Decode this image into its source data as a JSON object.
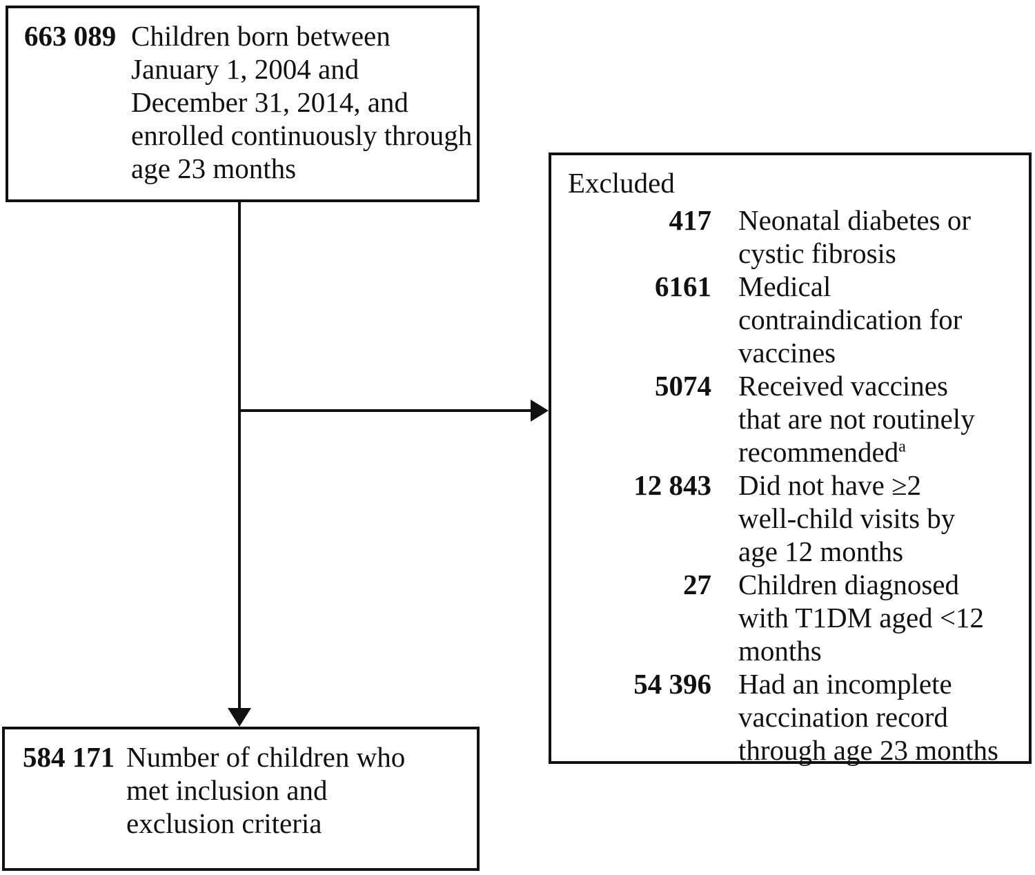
{
  "diagram": {
    "top_box": {
      "count": "663 089",
      "label": "Children born between\nJanuary 1, 2004 and\nDecember 31, 2014, and\nenrolled continuously through\nage 23 months"
    },
    "excluded_box": {
      "title": "Excluded",
      "items": [
        {
          "count": "417",
          "label": "Neonatal diabetes or\ncystic fibrosis"
        },
        {
          "count": "6161",
          "label": "Medical\ncontraindication for\nvaccines"
        },
        {
          "count": "5074",
          "label": "Received vaccines\nthat are not routinely\nrecommended",
          "sup": "a"
        },
        {
          "count": "12 843",
          "label": "Did not have ≥2\nwell-child visits by\nage 12 months"
        },
        {
          "count": "27",
          "label": "Children diagnosed\nwith T1DM aged <12\nmonths"
        },
        {
          "count": "54 396",
          "label": "Had an incomplete\nvaccination record\nthrough age 23 months"
        }
      ]
    },
    "result_box": {
      "count": "584 171",
      "label": "Number of children who\nmet inclusion and\nexclusion criteria"
    },
    "colors": {
      "ink": "#111111",
      "background": "#ffffff"
    }
  }
}
